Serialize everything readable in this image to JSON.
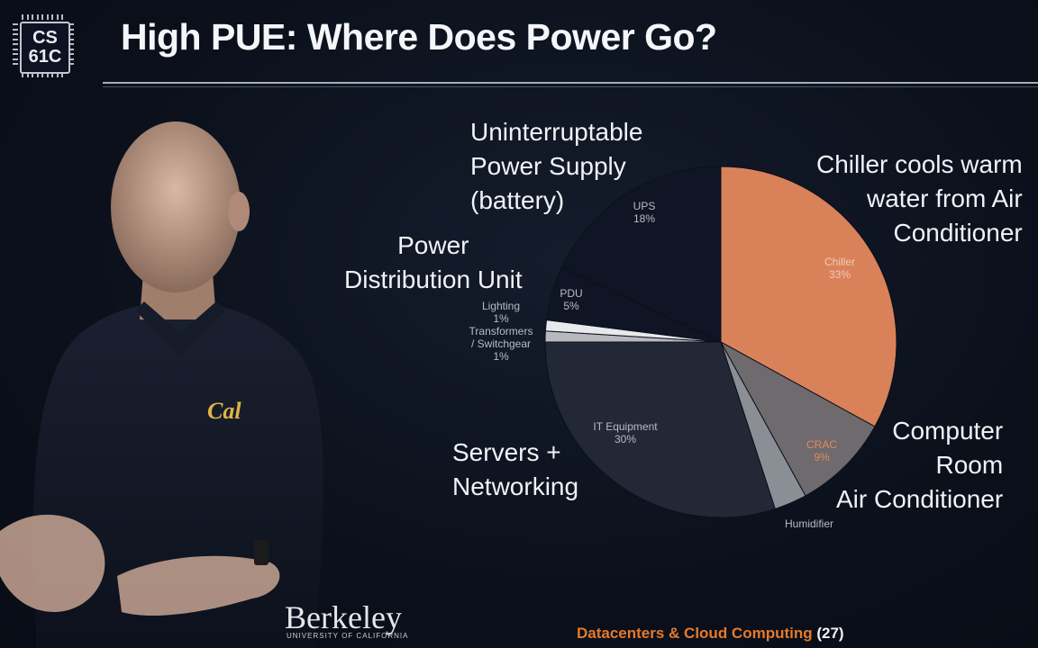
{
  "logo": {
    "line1": "CS",
    "line2": "61C"
  },
  "title": "High PUE: Where Does Power Go?",
  "annotations": {
    "ups": [
      "Uninterruptable",
      "Power Supply",
      "(battery)"
    ],
    "pdu": [
      "Power",
      "Distribution Unit"
    ],
    "servers": [
      "Servers +",
      "Networking"
    ],
    "chiller": [
      "Chiller cools warm",
      "water from Air",
      "Conditioner"
    ],
    "crac": [
      "Computer",
      "Room",
      "Air Conditioner"
    ]
  },
  "footer": {
    "course_topic": "Datacenters & Cloud Computing",
    "page": "(27)",
    "university": "Berkeley",
    "university_sub": "UNIVERSITY OF CALIFORNIA"
  },
  "colors": {
    "chiller": "#d9825a",
    "crac": "#6e6a6e",
    "humidifier": "#8a8f96",
    "it": "#222836",
    "transformers": "#b7b9bd",
    "lighting": "#e7e9ec",
    "pdu": "#0f1524",
    "ups": "#0f1524",
    "footer_accent": "#e47a2c"
  },
  "chart_data": {
    "type": "pie",
    "title": "",
    "slices": [
      {
        "name": "Chiller",
        "label_line1": "Chiller",
        "label_line2": "33%",
        "value": 33
      },
      {
        "name": "CRAC",
        "label_line1": "CRAC",
        "label_line2": "9%",
        "value": 9
      },
      {
        "name": "Humidifier",
        "label_line1": "Humidifier",
        "label_line2": "",
        "value": 3
      },
      {
        "name": "IT Equipment",
        "label_line1": "IT Equipment",
        "label_line2": "30%",
        "value": 30
      },
      {
        "name": "Transformers / Switchgear",
        "label_line1": "Transformers",
        "label_line1b": "/ Switchgear",
        "label_line2": "1%",
        "value": 1
      },
      {
        "name": "Lighting",
        "label_line1": "Lighting",
        "label_line2": "1%",
        "value": 1
      },
      {
        "name": "PDU",
        "label_line1": "PDU",
        "label_line2": "5%",
        "value": 5
      },
      {
        "name": "UPS",
        "label_line1": "UPS",
        "label_line2": "18%",
        "value": 18
      }
    ]
  }
}
